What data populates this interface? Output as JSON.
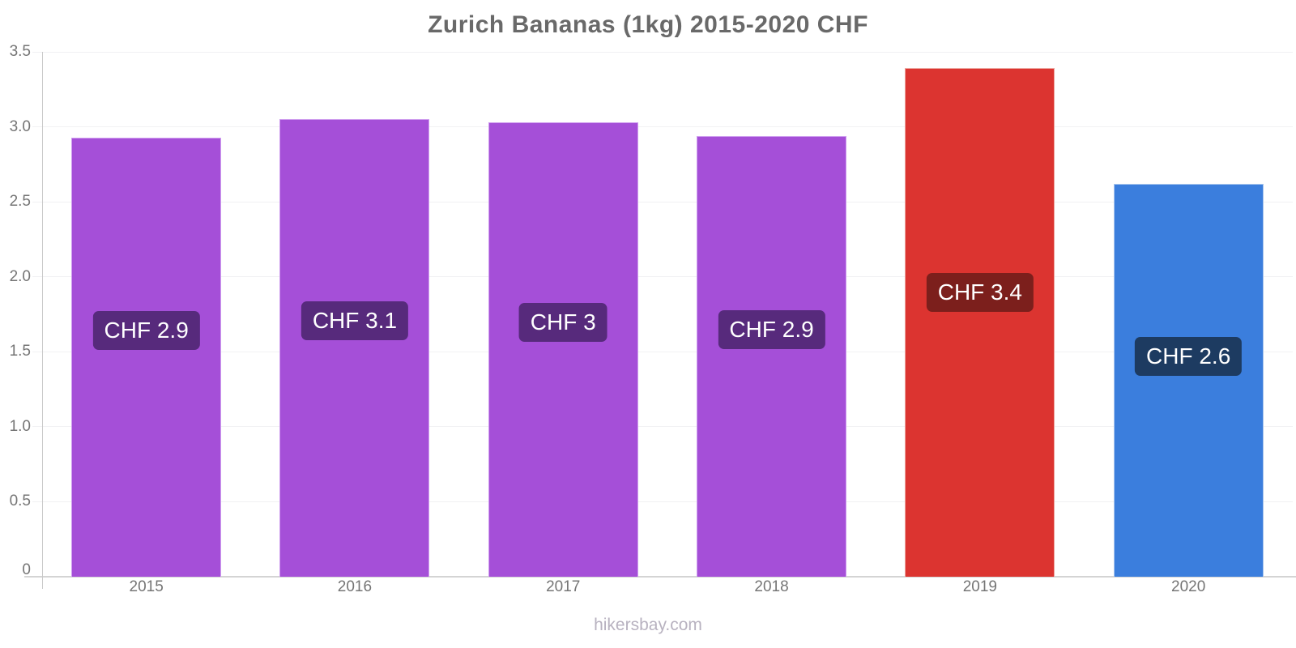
{
  "chart_data": {
    "type": "bar",
    "title": "Zurich Bananas (1kg) 2015-2020 CHF",
    "footer": "hikersbay.com",
    "xlabel": "",
    "ylabel": "",
    "ylim": [
      0,
      3.5
    ],
    "grid": true,
    "legend": "none",
    "categories": [
      "2015",
      "2016",
      "2017",
      "2018",
      "2019",
      "2020"
    ],
    "values": [
      2.93,
      3.05,
      3.03,
      2.94,
      3.39,
      2.62
    ],
    "bar_value_labels": [
      "CHF 2.9",
      "CHF 3.1",
      "CHF 3",
      "CHF 2.9",
      "CHF 3.4",
      "CHF 2.6"
    ],
    "bar_colors": [
      "#a54fd8",
      "#a54fd8",
      "#a54fd8",
      "#a54fd8",
      "#dc3430",
      "#3b7edd"
    ],
    "bar_border_colors": [
      "#cf9eef",
      "#cf9eef",
      "#cf9eef",
      "#cf9eef",
      "#eda6a0",
      "#a9c6ee"
    ],
    "value_label_bg_colors": [
      "#572a7c",
      "#572a7c",
      "#572a7c",
      "#572a7c",
      "#7c1f1c",
      "#1d3b61"
    ],
    "ytick_labels": [
      "0",
      "0.5",
      "1.0",
      "1.5",
      "2.0",
      "2.5",
      "3.0",
      "3.5"
    ],
    "ytick_values": [
      0,
      0.5,
      1,
      1.5,
      2,
      2.5,
      3,
      3.5
    ],
    "text_color": "#757575",
    "title_color": "#696969",
    "footer_color": "#b8b2c0"
  }
}
